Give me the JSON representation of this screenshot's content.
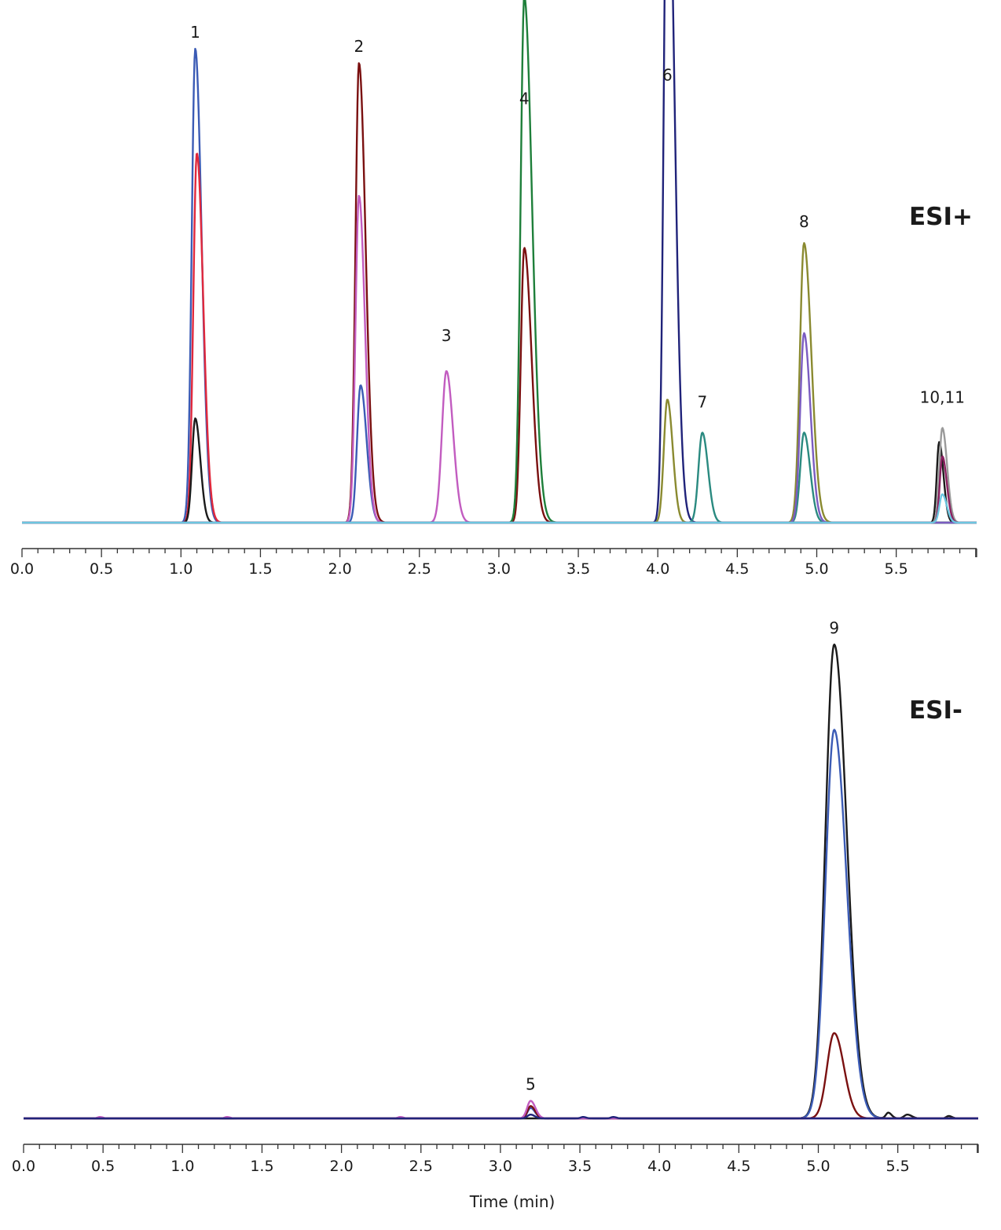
{
  "chart_data": [
    {
      "type": "line",
      "panel": "esi-plus",
      "mode_label": "ESI+",
      "xlabel": "",
      "xlim": [
        0.0,
        6.0
      ],
      "x_ticks": [
        "0.0",
        "0.5",
        "1.0",
        "1.5",
        "2.0",
        "2.5",
        "3.0",
        "3.5",
        "4.0",
        "4.5",
        "5.0",
        "5.5"
      ],
      "y_relative_max": 100,
      "grid": false,
      "peak_labels": [
        {
          "text": "1",
          "x": 1.09,
          "y": 100
        },
        {
          "text": "2",
          "x": 2.12,
          "y": 97
        },
        {
          "text": "3",
          "x": 2.67,
          "y": 36
        },
        {
          "text": "4",
          "x": 3.16,
          "y": 86
        },
        {
          "text": "6",
          "x": 4.06,
          "y": 91
        },
        {
          "text": "7",
          "x": 4.28,
          "y": 22
        },
        {
          "text": "8",
          "x": 4.92,
          "y": 60
        },
        {
          "text": "10,11",
          "x": 5.79,
          "y": 23
        }
      ],
      "series": [
        {
          "color": "#3b5bb5",
          "peaks": [
            {
              "rt": 1.09,
              "h": 100,
              "w": 0.022,
              "tail": 0.045
            },
            {
              "rt": 2.13,
              "h": 29,
              "w": 0.022,
              "tail": 0.04
            }
          ]
        },
        {
          "color": "#e0283c",
          "peaks": [
            {
              "rt": 1.1,
              "h": 78,
              "w": 0.022,
              "tail": 0.045
            }
          ]
        },
        {
          "color": "#1a1a1a",
          "peaks": [
            {
              "rt": 1.09,
              "h": 22,
              "w": 0.02,
              "tail": 0.03
            },
            {
              "rt": 5.77,
              "h": 17,
              "w": 0.015,
              "tail": 0.03
            }
          ]
        },
        {
          "color": "#7a1010",
          "peaks": [
            {
              "rt": 2.12,
              "h": 97,
              "w": 0.022,
              "tail": 0.05
            },
            {
              "rt": 3.16,
              "h": 58,
              "w": 0.022,
              "tail": 0.06
            }
          ]
        },
        {
          "color": "#c25cc0",
          "peaks": [
            {
              "rt": 2.12,
              "h": 69,
              "w": 0.022,
              "tail": 0.04
            },
            {
              "rt": 2.67,
              "h": 32,
              "w": 0.028,
              "tail": 0.035
            }
          ]
        },
        {
          "color": "#1e7f3a",
          "peaks": [
            {
              "rt": 3.16,
              "h": 84,
              "w": 0.024,
              "tail": 0.07
            },
            {
              "rt": 3.16,
              "h": 27,
              "w": 0.022,
              "tail": 0.05
            }
          ]
        },
        {
          "color": "#20237a",
          "peaks": [
            {
              "rt": 4.06,
              "h": 89,
              "w": 0.022,
              "tail": 0.06
            },
            {
              "rt": 4.06,
              "h": 63,
              "w": 0.022,
              "tail": 0.05
            }
          ]
        },
        {
          "color": "#8a8a30",
          "peaks": [
            {
              "rt": 4.06,
              "h": 26,
              "w": 0.022,
              "tail": 0.03
            },
            {
              "rt": 4.92,
              "h": 59,
              "w": 0.026,
              "tail": 0.05
            }
          ]
        },
        {
          "color": "#2a8a80",
          "peaks": [
            {
              "rt": 4.28,
              "h": 19,
              "w": 0.024,
              "tail": 0.03
            },
            {
              "rt": 4.92,
              "h": 19,
              "w": 0.024,
              "tail": 0.035
            }
          ]
        },
        {
          "color": "#7a5cc0",
          "peaks": [
            {
              "rt": 4.92,
              "h": 40,
              "w": 0.024,
              "tail": 0.04
            }
          ]
        },
        {
          "color": "#9a9a9a",
          "peaks": [
            {
              "rt": 5.79,
              "h": 20,
              "w": 0.018,
              "tail": 0.03
            }
          ]
        },
        {
          "color": "#8a2060",
          "peaks": [
            {
              "rt": 5.79,
              "h": 14,
              "w": 0.016,
              "tail": 0.03
            }
          ]
        },
        {
          "color": "#6cc6e0",
          "peaks": [
            {
              "rt": 5.79,
              "h": 6,
              "w": 0.018,
              "tail": 0.025
            }
          ]
        }
      ]
    },
    {
      "type": "line",
      "panel": "esi-minus",
      "mode_label": "ESI-",
      "xlabel": "Time (min)",
      "xlim": [
        0.0,
        6.0
      ],
      "x_ticks": [
        "0.0",
        "0.5",
        "1.0",
        "1.5",
        "2.0",
        "2.5",
        "3.0",
        "3.5",
        "4.0",
        "4.5",
        "5.0",
        "5.5"
      ],
      "y_relative_max": 100,
      "grid": false,
      "peak_labels": [
        {
          "text": "5",
          "x": 3.19,
          "y": 3.7
        },
        {
          "text": "9",
          "x": 5.1,
          "y": 100
        }
      ],
      "series": [
        {
          "color": "#1a1a1a",
          "peaks": [
            {
              "rt": 5.1,
              "h": 100,
              "w": 0.055,
              "tail": 0.06
            },
            {
              "rt": 5.44,
              "h": 1.2,
              "w": 0.015,
              "tail": 0.015
            },
            {
              "rt": 5.56,
              "h": 0.8,
              "w": 0.02,
              "tail": 0.02
            },
            {
              "rt": 5.82,
              "h": 0.5,
              "w": 0.015,
              "tail": 0.015
            }
          ]
        },
        {
          "color": "#3b5bb5",
          "peaks": [
            {
              "rt": 5.1,
              "h": 82,
              "w": 0.055,
              "tail": 0.06
            },
            {
              "rt": 3.19,
              "h": 2.2,
              "w": 0.02,
              "tail": 0.02
            }
          ]
        },
        {
          "color": "#7a1010",
          "peaks": [
            {
              "rt": 5.1,
              "h": 18,
              "w": 0.045,
              "tail": 0.04
            },
            {
              "rt": 3.19,
              "h": 2.6,
              "w": 0.02,
              "tail": 0.02
            }
          ]
        },
        {
          "color": "#c25cc0",
          "peaks": [
            {
              "rt": 3.19,
              "h": 3.7,
              "w": 0.022,
              "tail": 0.02
            },
            {
              "rt": 0.48,
              "h": 0.3,
              "w": 0.015,
              "tail": 0.01
            },
            {
              "rt": 1.28,
              "h": 0.3,
              "w": 0.015,
              "tail": 0.01
            },
            {
              "rt": 2.37,
              "h": 0.3,
              "w": 0.015,
              "tail": 0.01
            }
          ]
        },
        {
          "color": "#20237a",
          "peaks": [
            {
              "rt": 3.19,
              "h": 0.8,
              "w": 0.02,
              "tail": 0.015
            },
            {
              "rt": 3.52,
              "h": 0.3,
              "w": 0.015,
              "tail": 0.01
            },
            {
              "rt": 3.71,
              "h": 0.3,
              "w": 0.015,
              "tail": 0.01
            }
          ]
        }
      ]
    }
  ]
}
